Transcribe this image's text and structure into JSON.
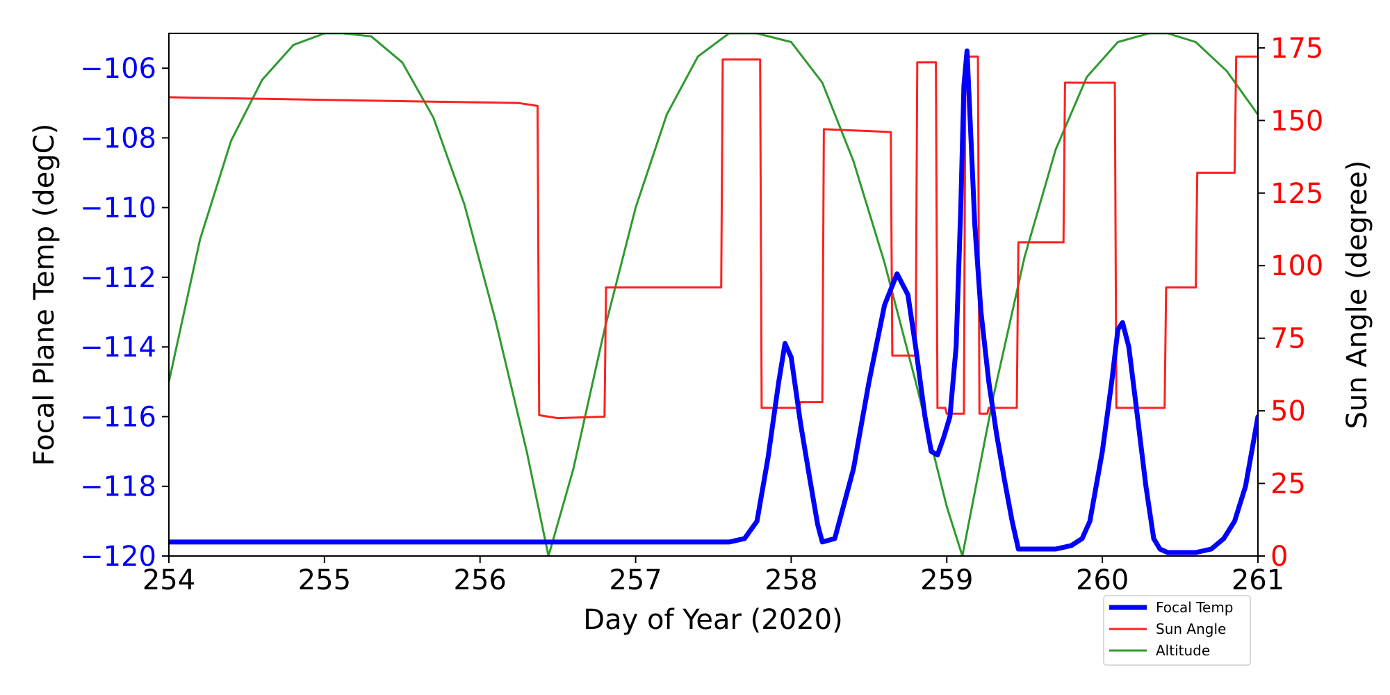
{
  "chart_data": {
    "type": "line",
    "xlabel": "Day of Year (2020)",
    "ylabel_left": "Focal Plane Temp (degC)",
    "ylabel_right": "Sun Angle (degree)",
    "xlim": [
      254,
      261
    ],
    "ylim_left": [
      -120,
      -105
    ],
    "ylim_right": [
      0,
      180
    ],
    "x_ticks": [
      "254",
      "255",
      "256",
      "257",
      "258",
      "259",
      "260",
      "261"
    ],
    "y_left_ticks": [
      "−120",
      "−118",
      "−116",
      "−114",
      "−112",
      "−110",
      "−108",
      "−106"
    ],
    "y_right_ticks": [
      "0",
      "25",
      "50",
      "75",
      "100",
      "125",
      "150",
      "175"
    ],
    "legend_placement": "bottom-right",
    "grid": false,
    "colors": {
      "left_axis": "#0000ff",
      "right_axis": "#ff0000"
    },
    "series": [
      {
        "name": "Focal Temp",
        "axis": "left",
        "color": "#0000ff",
        "x": [
          254.0,
          255.0,
          256.0,
          257.0,
          257.55,
          257.6,
          257.7,
          257.78,
          257.85,
          257.92,
          257.96,
          258.0,
          258.06,
          258.12,
          258.17,
          258.2,
          258.28,
          258.4,
          258.5,
          258.6,
          258.68,
          258.75,
          258.8,
          258.86,
          258.9,
          258.94,
          258.98,
          259.02,
          259.06,
          259.09,
          259.11,
          259.13,
          259.15,
          259.18,
          259.22,
          259.27,
          259.32,
          259.37,
          259.42,
          259.46,
          259.5,
          259.6,
          259.7,
          259.8,
          259.87,
          259.92,
          260.0,
          260.06,
          260.1,
          260.13,
          260.17,
          260.22,
          260.28,
          260.33,
          260.37,
          260.42,
          260.5,
          260.6,
          260.7,
          260.78,
          260.85,
          260.92,
          261.0
        ],
        "y": [
          -119.6,
          -119.6,
          -119.6,
          -119.6,
          -119.6,
          -119.6,
          -119.5,
          -119.0,
          -117.2,
          -115.0,
          -113.9,
          -114.3,
          -116.2,
          -117.8,
          -119.1,
          -119.6,
          -119.5,
          -117.5,
          -115.0,
          -112.8,
          -111.9,
          -112.5,
          -114.0,
          -116.0,
          -117.0,
          -117.1,
          -116.6,
          -116.0,
          -114.0,
          -110.0,
          -106.5,
          -105.5,
          -107.5,
          -110.5,
          -113.0,
          -115.0,
          -116.5,
          -117.8,
          -119.0,
          -119.8,
          -119.8,
          -119.8,
          -119.8,
          -119.7,
          -119.5,
          -119.0,
          -117.0,
          -115.0,
          -113.5,
          -113.3,
          -114.0,
          -115.8,
          -118.0,
          -119.5,
          -119.8,
          -119.9,
          -119.9,
          -119.9,
          -119.8,
          -119.5,
          -119.0,
          -118.0,
          -116.0
        ]
      },
      {
        "name": "Sun Angle",
        "axis": "right",
        "color": "#ff2020",
        "x": [
          254.0,
          256.25,
          256.37,
          256.38,
          256.5,
          256.8,
          256.81,
          257.55,
          257.56,
          257.8,
          257.81,
          258.05,
          258.06,
          258.14,
          258.15,
          258.2,
          258.21,
          258.64,
          258.65,
          258.8,
          258.81,
          258.93,
          258.94,
          258.99,
          259.0,
          259.11,
          259.12,
          259.2,
          259.21,
          259.26,
          259.27,
          259.45,
          259.46,
          259.75,
          259.76,
          260.08,
          260.09,
          260.4,
          260.41,
          260.6,
          260.61,
          260.85,
          260.86,
          261.0
        ],
        "y": [
          158,
          156,
          155,
          48.5,
          47.5,
          48,
          92.5,
          92.5,
          171,
          171,
          51,
          51,
          53,
          53,
          53,
          53,
          147,
          146,
          69,
          69,
          170,
          170,
          51,
          51,
          49,
          49,
          172,
          172,
          49,
          49,
          51,
          51,
          108,
          108,
          163,
          163,
          51,
          51,
          92.5,
          92.5,
          132,
          132,
          172,
          172
        ]
      },
      {
        "name": "Altitude",
        "axis": "right",
        "color": "#2e9a2e",
        "x": [
          254.0,
          254.2,
          254.4,
          254.6,
          254.8,
          255.0,
          255.12,
          255.3,
          255.5,
          255.7,
          255.9,
          256.1,
          256.3,
          256.44,
          256.6,
          256.8,
          257.0,
          257.2,
          257.4,
          257.6,
          257.78,
          258.0,
          258.2,
          258.4,
          258.6,
          258.8,
          259.0,
          259.1,
          259.3,
          259.5,
          259.7,
          259.9,
          260.1,
          260.3,
          260.42,
          260.6,
          260.8,
          261.0
        ],
        "y": [
          60,
          109,
          143,
          164,
          176,
          180,
          180,
          179,
          170,
          151,
          121,
          81,
          36,
          0,
          30,
          78,
          120,
          152,
          172,
          180,
          180,
          177,
          163,
          136,
          101,
          60,
          17,
          0,
          55,
          103,
          140,
          165,
          177,
          180,
          180,
          177,
          167,
          152
        ]
      }
    ]
  }
}
